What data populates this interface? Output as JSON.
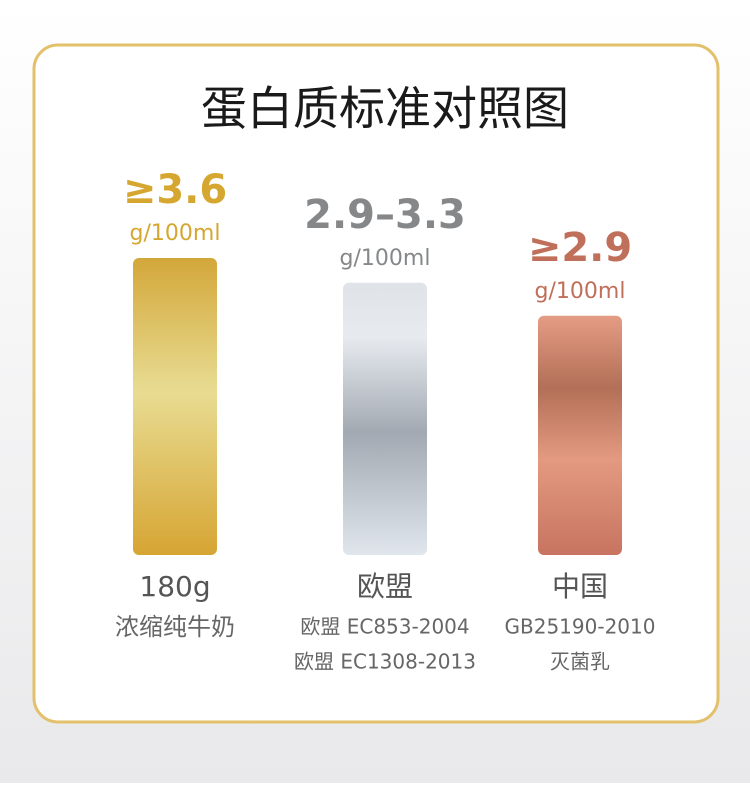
{
  "chart_data": {
    "type": "bar",
    "title": "蛋白质标准对照图",
    "categories": [
      "180g",
      "欧盟",
      "中国"
    ],
    "descriptions": [
      [
        "浓缩纯牛奶"
      ],
      [
        "欧盟 EC853-2004",
        "欧盟 EC1308-2013"
      ],
      [
        "GB25190-2010",
        "灭菌乳"
      ]
    ],
    "values": [
      3.6,
      3.3,
      2.9
    ],
    "value_labels": [
      "≥3.6",
      "2.9–3.3",
      "≥2.9"
    ],
    "unit": "g/100ml",
    "colors": [
      "#d6a730",
      "#858789",
      "#c0705a"
    ]
  }
}
